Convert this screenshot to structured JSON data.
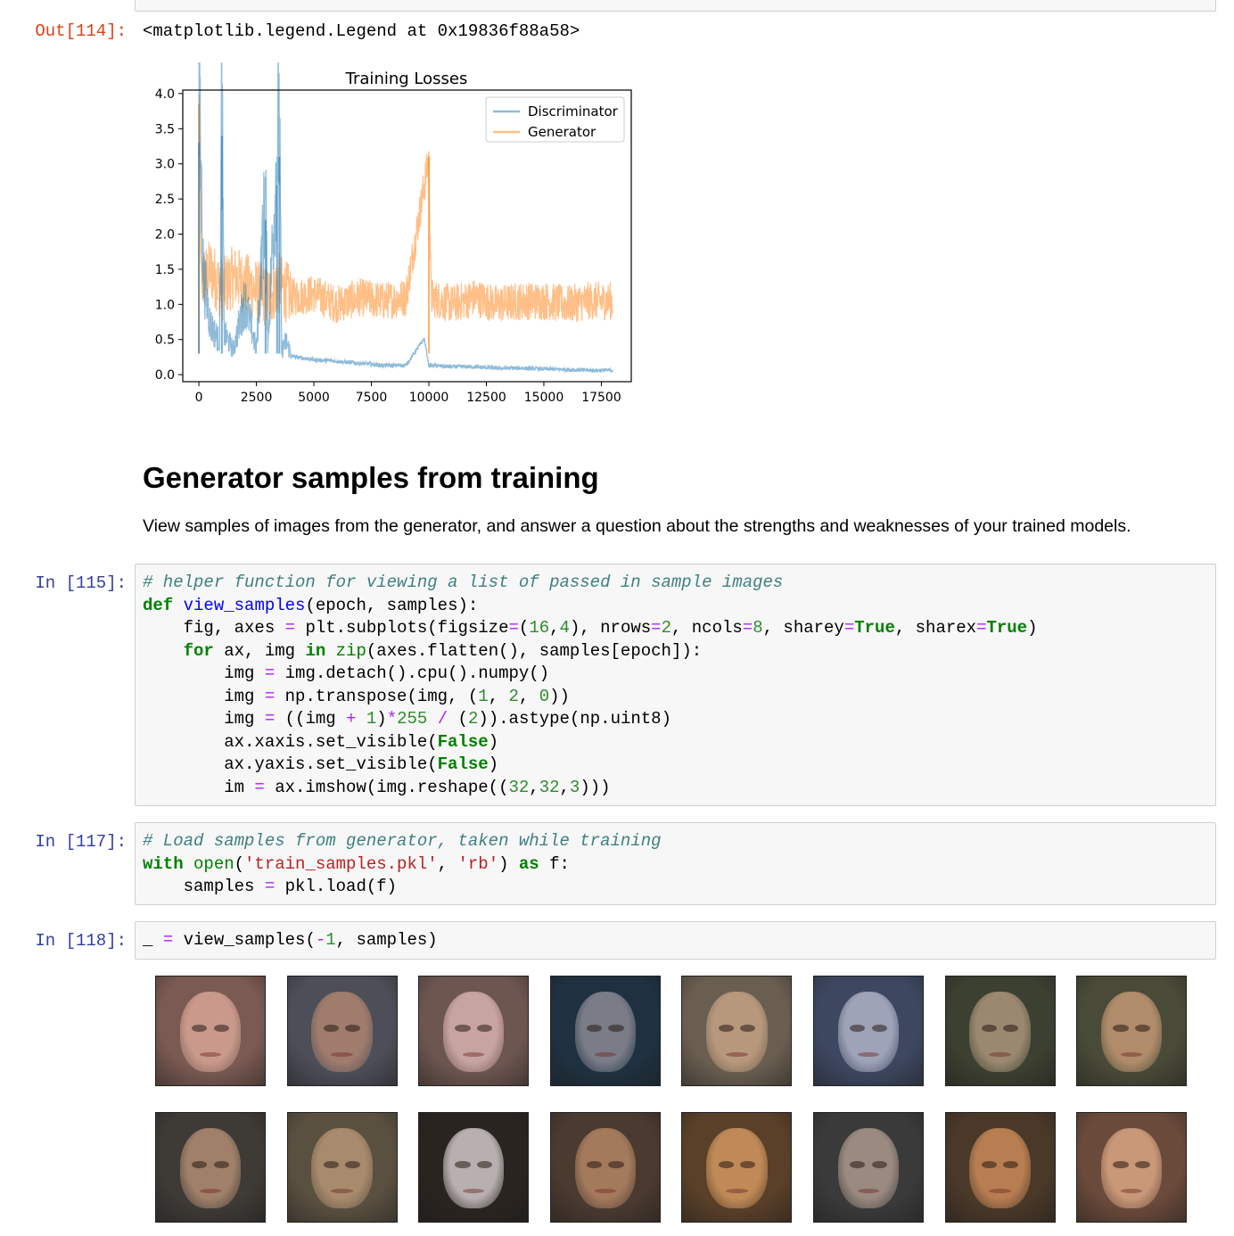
{
  "top_cell": {},
  "out_114": {
    "prompt": "Out[114]:",
    "text": "<matplotlib.legend.Legend at 0x19836f88a58>"
  },
  "chart_data": {
    "type": "line",
    "title": "Training Losses",
    "xlabel": "",
    "ylabel": "",
    "xlim": [
      -700,
      18800
    ],
    "ylim": [
      -0.1,
      4.05
    ],
    "x_ticks": [
      "0",
      "2500",
      "5000",
      "7500",
      "10000",
      "12500",
      "15000",
      "17500"
    ],
    "y_ticks": [
      "0.0",
      "0.5",
      "1.0",
      "1.5",
      "2.0",
      "2.5",
      "3.0",
      "3.5",
      "4.0"
    ],
    "grid": false,
    "legend_position": "top-right",
    "series": [
      {
        "name": "Discriminator",
        "color": "#1f77b4",
        "alpha": 0.5,
        "x": [
          0,
          200,
          500,
          900,
          1000,
          1100,
          1500,
          2000,
          2500,
          2900,
          3000,
          3400,
          3500,
          3600,
          3800,
          4000,
          5000,
          6000,
          7000,
          8000,
          9000,
          9800,
          10000,
          11000,
          12000,
          13000,
          14000,
          15000,
          16000,
          17000,
          18000
        ],
        "values": [
          3.3,
          1.2,
          0.6,
          0.4,
          3.4,
          0.5,
          0.3,
          0.9,
          0.3,
          2.2,
          0.4,
          2.7,
          3.1,
          0.3,
          0.4,
          0.25,
          0.2,
          0.18,
          0.15,
          0.12,
          0.12,
          0.5,
          0.12,
          0.1,
          0.1,
          0.08,
          0.08,
          0.07,
          0.06,
          0.05,
          0.05
        ]
      },
      {
        "name": "Generator",
        "color": "#ff7f0e",
        "alpha": 0.5,
        "x": [
          0,
          100,
          500,
          1000,
          1500,
          2000,
          2500,
          3000,
          3500,
          4000,
          5000,
          6000,
          7000,
          8000,
          9000,
          10000,
          10100,
          11000,
          12000,
          13000,
          14000,
          15000,
          16000,
          17000,
          18000
        ],
        "values": [
          3.85,
          1.3,
          1.5,
          1.2,
          1.4,
          1.3,
          1.2,
          1.1,
          1.3,
          1.1,
          1.15,
          1.0,
          1.1,
          1.05,
          1.1,
          3.1,
          1.1,
          1.0,
          1.1,
          1.0,
          1.05,
          1.05,
          1.0,
          1.05,
          1.05
        ]
      }
    ]
  },
  "markdown": {
    "heading": "Generator samples from training",
    "paragraph": "View samples of images from the generator, and answer a question about the strengths and weaknesses of your trained models."
  },
  "cell_115": {
    "prompt": "In [115]:",
    "code": "# helper function for viewing a list of passed in sample images\ndef view_samples(epoch, samples):\n    fig, axes = plt.subplots(figsize=(16,4), nrows=2, ncols=8, sharey=True, sharex=True)\n    for ax, img in zip(axes.flatten(), samples[epoch]):\n        img = img.detach().cpu().numpy()\n        img = np.transpose(img, (1, 2, 0))\n        img = ((img + 1)*255 / (2)).astype(np.uint8)\n        ax.xaxis.set_visible(False)\n        ax.yaxis.set_visible(False)\n        im = ax.imshow(img.reshape((32,32,3)))"
  },
  "cell_117": {
    "prompt": "In [117]:",
    "code": "# Load samples from generator, taken while training\nwith open('train_samples.pkl', 'rb') as f:\n    samples = pkl.load(f)"
  },
  "cell_118": {
    "prompt": "In [118]:",
    "code": "_ = view_samples(-1, samples)"
  },
  "samples_grid": {
    "rows": 2,
    "cols": 8,
    "tiles": [
      {
        "bg": "#7a5a52",
        "skin": "#c99a8c"
      },
      {
        "bg": "#4d4e58",
        "skin": "#a07c6c"
      },
      {
        "bg": "#6e5650",
        "skin": "#c8a4a0"
      },
      {
        "bg": "#1f3140",
        "skin": "#7a7c88"
      },
      {
        "bg": "#6a5e50",
        "skin": "#b8987c"
      },
      {
        "bg": "#3d4760",
        "skin": "#9ea3b8"
      },
      {
        "bg": "#3c4030",
        "skin": "#9a8870"
      },
      {
        "bg": "#4a4a38",
        "skin": "#b08c6a"
      },
      {
        "bg": "#3e3a36",
        "skin": "#a08068"
      },
      {
        "bg": "#5a5040",
        "skin": "#a88a6c"
      },
      {
        "bg": "#2a2420",
        "skin": "#b8b0b0"
      },
      {
        "bg": "#4a3a30",
        "skin": "#a47a5c"
      },
      {
        "bg": "#5a4028",
        "skin": "#c08a58"
      },
      {
        "bg": "#3a3a3a",
        "skin": "#9a8a80"
      },
      {
        "bg": "#4a3828",
        "skin": "#b87e52"
      },
      {
        "bg": "#6a4a3a",
        "skin": "#c89878"
      }
    ]
  }
}
